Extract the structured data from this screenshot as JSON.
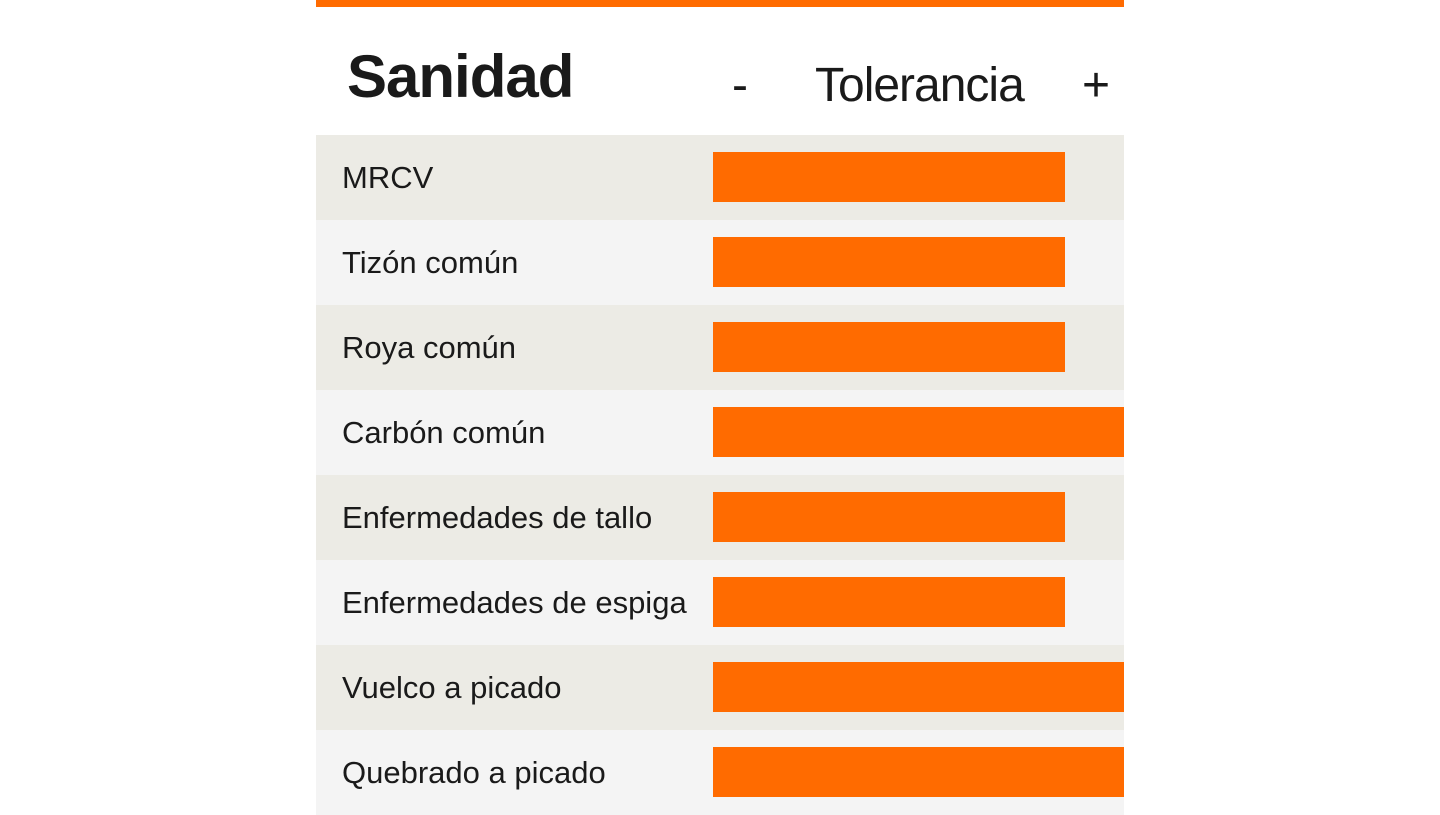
{
  "colors": {
    "accent": "#ff6b00",
    "row_odd": "#ecebe5",
    "row_even": "#f4f4f4",
    "text": "#1a1a1a"
  },
  "header": {
    "title": "Sanidad",
    "scale_min": "-",
    "scale_label": "Tolerancia",
    "scale_max": "+"
  },
  "chart_data": {
    "type": "bar",
    "orientation": "horizontal",
    "title": "Sanidad",
    "xlabel": "Tolerancia",
    "xlim": [
      0,
      7
    ],
    "categories": [
      "MRCV",
      "Tizón común",
      "Roya común",
      "Carbón común",
      "Enfermedades de tallo",
      "Enfermedades de espiga",
      "Vuelco a picado",
      "Quebrado a picado"
    ],
    "values": [
      6,
      6,
      6,
      7,
      6,
      6,
      7,
      7
    ],
    "grid": false,
    "legend": "none"
  }
}
